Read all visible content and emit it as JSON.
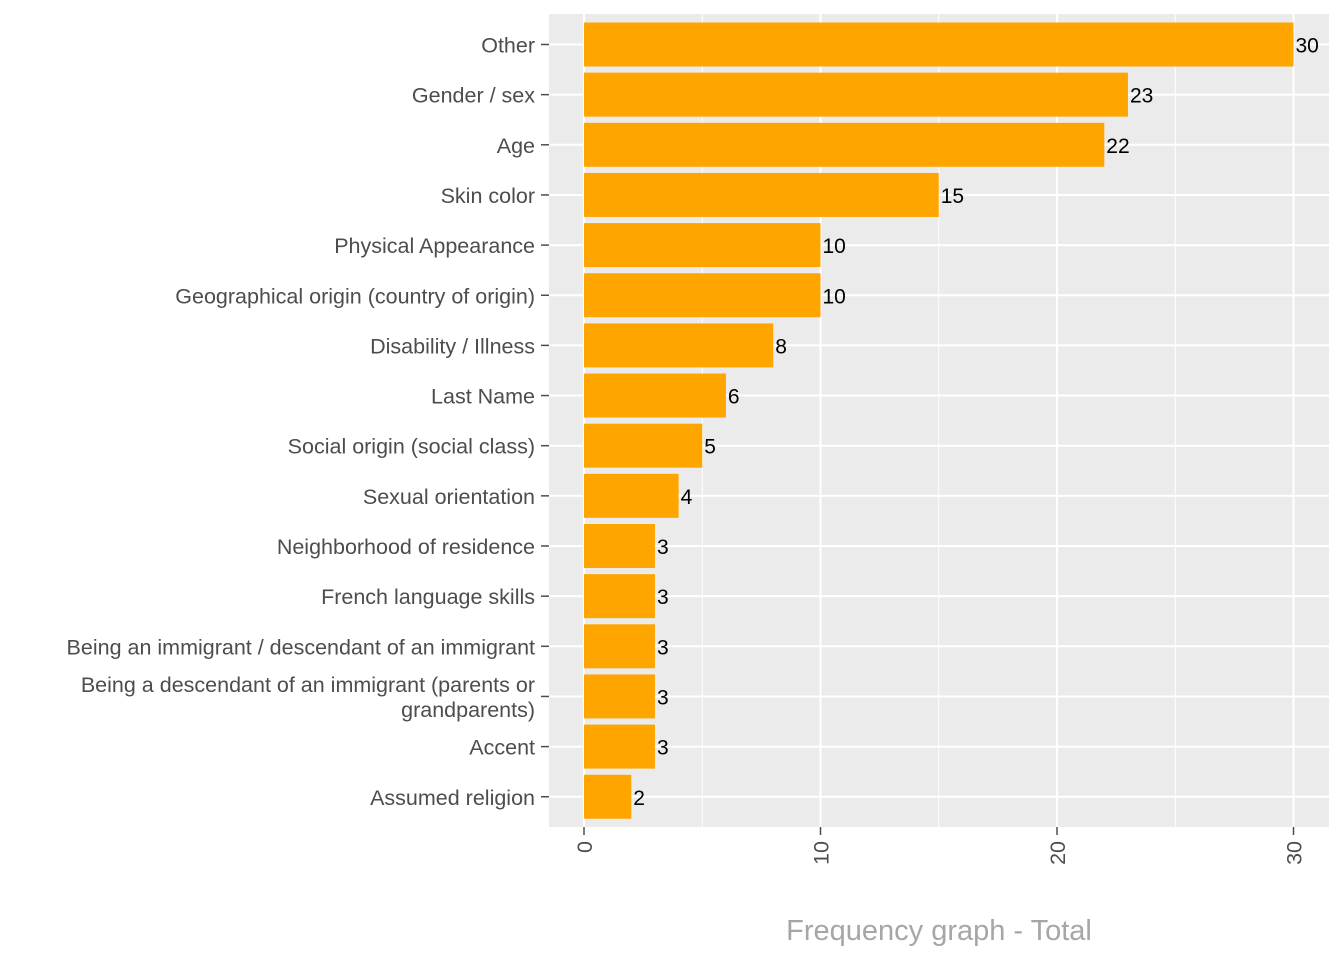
{
  "chart_data": {
    "type": "bar",
    "orientation": "horizontal",
    "title": "",
    "xlabel": "Frequency graph - Total",
    "ylabel": "",
    "categories": [
      "Other",
      "Gender / sex",
      "Age",
      "Skin color",
      "Physical Appearance",
      "Geographical origin (country of origin)",
      "Disability / Illness",
      "Last Name",
      "Social origin (social class)",
      "Sexual orientation",
      "Neighborhood of residence",
      "French language skills",
      "Being an immigrant / descendant of an immigrant",
      "Being a descendant of an immigrant (parents or\ngrandparents)",
      "Accent",
      "Assumed religion"
    ],
    "values": [
      30,
      23,
      22,
      15,
      10,
      10,
      8,
      6,
      5,
      4,
      3,
      3,
      3,
      3,
      3,
      2
    ],
    "xlim": [
      -1.5,
      31.5
    ],
    "x_ticks": [
      "0",
      "10",
      "20",
      "30"
    ],
    "grid": true,
    "legend": "none",
    "colors": {
      "bar": "#FFA500",
      "panel": "#EBEBEB",
      "grid": "#FFFFFF",
      "axis_text": "#4D4D4D",
      "label_text": "#000000",
      "xlabel_text": "#A6A6A6"
    }
  }
}
